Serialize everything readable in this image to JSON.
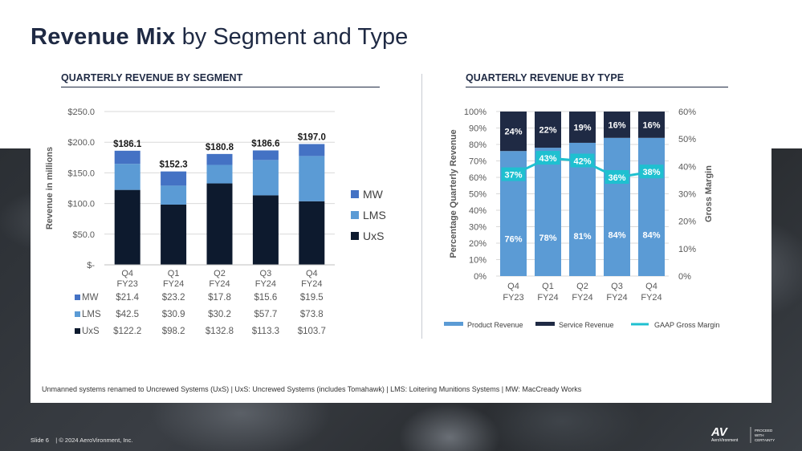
{
  "page": {
    "title_bold": "Revenue Mix",
    "title_rest": " by Segment and Type",
    "footnote": "Unmanned systems renamed to Uncrewed Systems (UxS) | UxS: Uncrewed Systems (includes Tomahawk)  |  LMS: Loitering Munitions Systems | MW: MacCready Works",
    "slide_label": "Slide 6",
    "copyright": "|  © 2024 AeroVironment, Inc.",
    "logo_text": "AV",
    "logo_sub": "AeroVironment",
    "tagline": [
      "PROCEED",
      "WITH",
      "CERTAINTY"
    ]
  },
  "colors": {
    "navy": "#1f2a44",
    "mw": "#4472c4",
    "lms": "#5b9bd5",
    "uxs": "#0d1a2e",
    "product": "#5b9bd5",
    "service": "#1f2a44",
    "margin": "#1fc0d0"
  },
  "chart_data": [
    {
      "type": "bar",
      "stacked": true,
      "title": "QUARTERLY REVENUE BY SEGMENT",
      "categories": [
        [
          "Q4",
          "FY23"
        ],
        [
          "Q1",
          "FY24"
        ],
        [
          "Q2",
          "FY24"
        ],
        [
          "Q3",
          "FY24"
        ],
        [
          "Q4",
          "FY24"
        ]
      ],
      "series": [
        {
          "name": "UxS",
          "values": [
            122.2,
            98.2,
            132.8,
            113.3,
            103.7
          ],
          "labels": [
            "$122.2",
            "$98.2",
            "$132.8",
            "$113.3",
            "$103.7"
          ]
        },
        {
          "name": "LMS",
          "values": [
            42.5,
            30.9,
            30.2,
            57.7,
            73.8
          ],
          "labels": [
            "$42.5",
            "$30.9",
            "$30.2",
            "$57.7",
            "$73.8"
          ]
        },
        {
          "name": "MW",
          "values": [
            21.4,
            23.2,
            17.8,
            15.6,
            19.5
          ],
          "labels": [
            "$21.4",
            "$23.2",
            "$17.8",
            "$15.6",
            "$19.5"
          ]
        }
      ],
      "totals": [
        186.1,
        152.3,
        180.8,
        186.6,
        197.0
      ],
      "total_labels": [
        "$186.1",
        "$152.3",
        "$180.8",
        "$186.6",
        "$197.0"
      ],
      "ylabel": "Revenue in millions",
      "ylim": [
        0,
        250
      ],
      "yticks": [
        0,
        50,
        100,
        150,
        200,
        250
      ],
      "ytick_labels": [
        "$-",
        "$50.0",
        "$100.0",
        "$150.0",
        "$200.0",
        "$250.0"
      ],
      "legend_order": [
        "MW",
        "LMS",
        "UxS"
      ],
      "legend_position": "right",
      "grid": true,
      "data_table": true
    },
    {
      "type": "bar",
      "stacked": true,
      "percent": true,
      "title": "QUARTERLY REVENUE BY TYPE",
      "categories": [
        [
          "Q4",
          "FY23"
        ],
        [
          "Q1",
          "FY24"
        ],
        [
          "Q2",
          "FY24"
        ],
        [
          "Q3",
          "FY24"
        ],
        [
          "Q4",
          "FY24"
        ]
      ],
      "series": [
        {
          "name": "Product Revenue",
          "values": [
            76,
            78,
            81,
            84,
            84
          ],
          "labels": [
            "76%",
            "78%",
            "81%",
            "84%",
            "84%"
          ]
        },
        {
          "name": "Service Revenue",
          "values": [
            24,
            22,
            19,
            16,
            16
          ],
          "labels": [
            "24%",
            "22%",
            "19%",
            "16%",
            "16%"
          ]
        }
      ],
      "line_series": {
        "name": "GAAP Gross Margin",
        "values": [
          37,
          43,
          42,
          36,
          38
        ],
        "labels": [
          "37%",
          "43%",
          "42%",
          "36%",
          "38%"
        ],
        "axis": "right"
      },
      "ylabel": "Percentage Quarterly  Revenue",
      "ylim": [
        0,
        100
      ],
      "yticks": [
        0,
        10,
        20,
        30,
        40,
        50,
        60,
        70,
        80,
        90,
        100
      ],
      "ytick_labels": [
        "0%",
        "10%",
        "20%",
        "30%",
        "40%",
        "50%",
        "60%",
        "70%",
        "80%",
        "90%",
        "100%"
      ],
      "y2label": "Gross Margin",
      "y2lim": [
        0,
        60
      ],
      "y2ticks": [
        0,
        10,
        20,
        30,
        40,
        50,
        60
      ],
      "y2tick_labels": [
        "0%",
        "10%",
        "20%",
        "30%",
        "40%",
        "50%",
        "60%"
      ],
      "legend_position": "bottom",
      "grid": true
    }
  ]
}
